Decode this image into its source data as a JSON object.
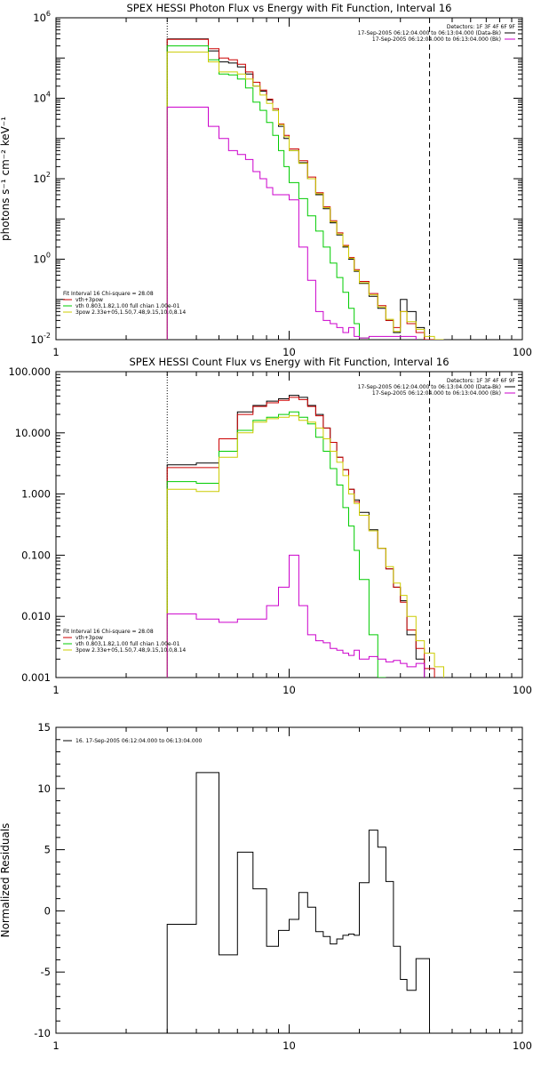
{
  "chart_data": [
    {
      "type": "line",
      "step": true,
      "title": "SPEX HESSI Photon Flux vs Energy with Fit Function, Interval 16",
      "xlabel": "",
      "ylabel": "photons s⁻¹ cm⁻² keV⁻¹",
      "xscale": "log",
      "yscale": "log",
      "xlim": [
        1,
        100
      ],
      "ylim": [
        0.01,
        1000000
      ],
      "x_ticks": [
        "1",
        "10",
        "100"
      ],
      "y_ticks": [
        {
          "value": 0.01,
          "base": "10",
          "exp": "-2"
        },
        {
          "value": 1,
          "base": "10",
          "exp": "0"
        },
        {
          "value": 100,
          "base": "10",
          "exp": "2"
        },
        {
          "value": 10000,
          "base": "10",
          "exp": "4"
        },
        {
          "value": 1000000,
          "base": "10",
          "exp": "6"
        }
      ],
      "vlines": [
        {
          "x": 3,
          "style": "dotted"
        },
        {
          "x": 40,
          "style": "dashed"
        }
      ],
      "legend_top_right": [
        {
          "text": "Detectors: 1F 3F 4F 6F 9F",
          "color": ""
        },
        {
          "text": "17-Sep-2005 06:12:04.000 to 06:13:04.000 (Data-Bk)",
          "color": "#000000"
        },
        {
          "text": "17-Sep-2005 06:12:04.000 to 06:13:04.000 (Bk)",
          "color": "#cc00cc"
        }
      ],
      "legend_bottom_left": [
        {
          "text": "Fit Interval 16    Chi-square = 28.08",
          "color": ""
        },
        {
          "text": "vth+3pow",
          "color": "#cc0000"
        },
        {
          "text": "vth 0.803,1.82,1.00   full chian 1.00e-01",
          "color": "#00cc00"
        },
        {
          "text": "3pow 2.33e+05,1.50,7.48,9.15,10.0,8.14",
          "color": "#cccc00"
        }
      ],
      "edges": [
        3,
        3.5,
        4,
        4.5,
        5,
        5.5,
        6,
        6.5,
        7,
        7.5,
        8,
        8.5,
        9,
        9.5,
        10,
        11,
        12,
        13,
        14,
        15,
        16,
        17,
        18,
        19,
        20,
        22,
        24,
        26,
        28,
        30,
        32,
        35,
        38,
        42,
        46,
        50
      ],
      "series": [
        {
          "name": "",
          "color": "#000000",
          "values": [
            300000,
            300000,
            300000,
            150000,
            80000,
            75000,
            60000,
            40000,
            20000,
            15000,
            9000,
            5000,
            2000,
            1000,
            500,
            250,
            100,
            40,
            18,
            8,
            4,
            2,
            1,
            0.5,
            0.25,
            0.12,
            0.06,
            0.03,
            0.015,
            0.1,
            0.05,
            0.02,
            0.01,
            null,
            null
          ]
        },
        {
          "name": "",
          "color": "#cc0000",
          "values": [
            290000,
            290000,
            290000,
            170000,
            100000,
            90000,
            70000,
            45000,
            25000,
            16000,
            9500,
            5500,
            2300,
            1200,
            550,
            280,
            110,
            45,
            20,
            9,
            4.5,
            2.2,
            1.1,
            0.55,
            0.28,
            0.14,
            0.07,
            0.03,
            0.02,
            0.05,
            0.025,
            0.015,
            0.01,
            null,
            null
          ]
        },
        {
          "name": "",
          "color": "#00cc00",
          "values": [
            200000,
            200000,
            200000,
            90000,
            40000,
            38000,
            30000,
            18000,
            8000,
            5000,
            2500,
            1200,
            500,
            200,
            80,
            32,
            12,
            5,
            2,
            0.8,
            0.35,
            0.15,
            0.06,
            0.025,
            0.011,
            null,
            null,
            null,
            null,
            null,
            null,
            null,
            null,
            null,
            null
          ]
        },
        {
          "name": "",
          "color": "#cccc00",
          "values": [
            140000,
            140000,
            140000,
            80000,
            45000,
            45000,
            40000,
            30000,
            20000,
            12000,
            7500,
            5000,
            2200,
            1100,
            500,
            240,
            100,
            42,
            19,
            8.5,
            4.2,
            2.1,
            1.05,
            0.52,
            0.26,
            0.13,
            0.065,
            0.032,
            0.016,
            0.05,
            0.028,
            0.018,
            0.012,
            0.007,
            null
          ]
        },
        {
          "name": "",
          "color": "#cc00cc",
          "values": [
            6000,
            6000,
            6000,
            2000,
            1000,
            500,
            400,
            300,
            150,
            100,
            60,
            40,
            40,
            40,
            30,
            2,
            0.3,
            0.05,
            0.03,
            0.025,
            0.02,
            0.015,
            0.02,
            0.012,
            0.011,
            0.012,
            0.012,
            0.012,
            0.012,
            0.012,
            0.012,
            null,
            null,
            null,
            null
          ]
        }
      ]
    },
    {
      "type": "line",
      "step": true,
      "title": "SPEX HESSI Count Flux vs Energy with Fit Function, Interval 16",
      "xlabel": "",
      "ylabel": "",
      "xscale": "log",
      "yscale": "log",
      "xlim": [
        1,
        100
      ],
      "ylim": [
        0.001,
        100
      ],
      "x_ticks": [
        "1",
        "10",
        "100"
      ],
      "y_ticks": [
        {
          "value": 0.001,
          "label": "0.001"
        },
        {
          "value": 0.01,
          "label": "0.010"
        },
        {
          "value": 0.1,
          "label": "0.100"
        },
        {
          "value": 1,
          "label": "1.000"
        },
        {
          "value": 10,
          "label": "10.000"
        },
        {
          "value": 100,
          "label": "100.000"
        }
      ],
      "vlines": [
        {
          "x": 3,
          "style": "dotted"
        },
        {
          "x": 40,
          "style": "dashed"
        }
      ],
      "legend_top_right": [
        {
          "text": "Detectors: 1F 3F 4F 6F 9F",
          "color": ""
        },
        {
          "text": "17-Sep-2005 06:12:04.000 to 06:13:04.000 (Data-Bk)",
          "color": "#000000"
        },
        {
          "text": "17-Sep-2005 06:12:04.000 to 06:13:04.000 (Bk)",
          "color": "#cc00cc"
        }
      ],
      "legend_bottom_left": [
        {
          "text": "Fit Interval 16    Chi-square = 28.08",
          "color": ""
        },
        {
          "text": "vth+3pow",
          "color": "#cc0000"
        },
        {
          "text": "vth 0.803,1.82,1.00   full chian 1.00e-01",
          "color": "#00cc00"
        },
        {
          "text": "3pow 2.33e+05,1.50,7.48,9.15,10.0,8.14",
          "color": "#cccc00"
        }
      ],
      "edges": [
        3,
        4,
        5,
        6,
        7,
        8,
        9,
        10,
        11,
        12,
        13,
        14,
        15,
        16,
        17,
        18,
        19,
        20,
        22,
        24,
        26,
        28,
        30,
        32,
        35,
        38,
        42,
        46,
        50
      ],
      "series": [
        {
          "name": "",
          "color": "#000000",
          "values": [
            3,
            3.2,
            8,
            22,
            28,
            33,
            36,
            41,
            38,
            28,
            20,
            12,
            7,
            4,
            2.5,
            1.2,
            0.8,
            0.5,
            0.26,
            0.13,
            0.06,
            0.03,
            0.018,
            0.005,
            0.002,
            0.001,
            null,
            null
          ]
        },
        {
          "name": "",
          "color": "#cc0000",
          "values": [
            2.7,
            2.7,
            8,
            20,
            27,
            31,
            34,
            38,
            35,
            27,
            19,
            12,
            7,
            4,
            2.5,
            1.2,
            0.75,
            0.45,
            0.25,
            0.13,
            0.06,
            0.03,
            0.017,
            0.006,
            0.003,
            0.0014,
            null,
            null
          ]
        },
        {
          "name": "",
          "color": "#00cc00",
          "values": [
            1.6,
            1.5,
            5,
            11,
            16,
            18,
            20,
            22,
            18,
            14,
            8.5,
            5,
            2.6,
            1.4,
            0.6,
            0.3,
            0.12,
            0.04,
            0.005,
            0.001,
            null,
            null,
            null,
            null,
            null,
            null,
            null,
            null
          ]
        },
        {
          "name": "",
          "color": "#cccc00",
          "values": [
            1.2,
            1.1,
            4,
            10,
            15,
            17,
            18,
            19,
            16,
            15,
            12,
            8,
            5,
            3.3,
            2,
            1,
            0.7,
            0.45,
            0.25,
            0.13,
            0.065,
            0.035,
            0.022,
            0.01,
            0.004,
            0.0025,
            0.0015,
            null
          ]
        },
        {
          "name": "",
          "color": "#cc00cc",
          "values": [
            0.011,
            0.009,
            0.008,
            0.009,
            0.009,
            0.015,
            0.03,
            0.1,
            0.015,
            0.005,
            0.004,
            0.0037,
            0.003,
            0.0028,
            0.0025,
            0.0023,
            0.0028,
            0.002,
            0.0022,
            0.002,
            0.0018,
            0.0019,
            0.0017,
            0.0015,
            0.0017,
            null,
            null,
            null
          ]
        }
      ]
    },
    {
      "type": "line",
      "step": true,
      "title": "",
      "xlabel": "",
      "ylabel": "Normalized Residuals",
      "xscale": "log",
      "yscale": "linear",
      "xlim": [
        1,
        100
      ],
      "ylim": [
        -10,
        15
      ],
      "x_ticks": [
        "1",
        "10",
        "100"
      ],
      "y_ticks": [
        {
          "value": -10,
          "label": "-10"
        },
        {
          "value": -5,
          "label": "-5"
        },
        {
          "value": 0,
          "label": "0"
        },
        {
          "value": 5,
          "label": "5"
        },
        {
          "value": 10,
          "label": "10"
        },
        {
          "value": 15,
          "label": "15"
        }
      ],
      "vlines": [],
      "legend_top_left": [
        {
          "text": "16. 17-Sep-2005 06:12:04.000 to 06:13:04.000",
          "color": "#000000"
        }
      ],
      "edges": [
        3,
        4,
        5,
        6,
        7,
        8,
        9,
        10,
        11,
        12,
        13,
        14,
        15,
        16,
        17,
        18,
        19,
        20,
        22,
        24,
        26,
        28,
        30,
        32,
        35,
        38,
        40
      ],
      "series": [
        {
          "name": "",
          "color": "#000000",
          "values": [
            -1.1,
            11.3,
            -3.6,
            4.8,
            1.8,
            -2.9,
            -1.6,
            -0.7,
            1.5,
            0.3,
            -1.7,
            -2.1,
            -2.7,
            -2.3,
            -2.0,
            -1.9,
            -2.0,
            2.3,
            6.6,
            5.2,
            2.4,
            -2.9,
            -5.6,
            -6.5,
            -3.9,
            -3.9
          ]
        }
      ]
    }
  ]
}
